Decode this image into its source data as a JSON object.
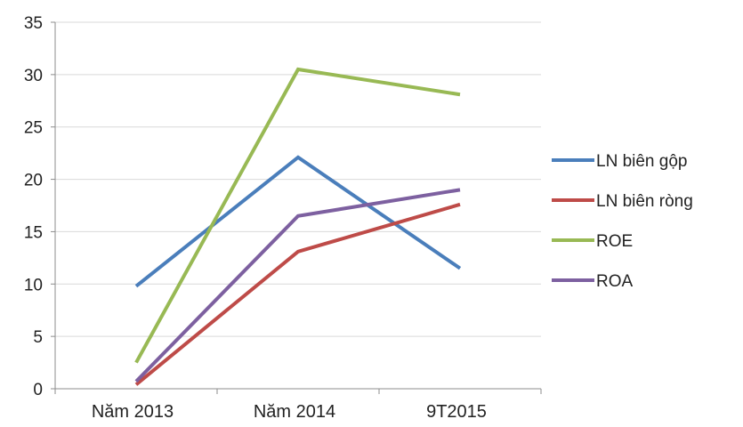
{
  "chart_data": {
    "type": "line",
    "title": "",
    "xlabel": "",
    "ylabel": "",
    "categories": [
      "Năm 2013",
      "Năm 2014",
      "9T2015"
    ],
    "ylim": [
      0,
      35
    ],
    "yticks": [
      0,
      5,
      10,
      15,
      20,
      25,
      30,
      35
    ],
    "grid": true,
    "legend_position": "right",
    "series": [
      {
        "name": "LN biên gộp",
        "color": "#4a7ebb",
        "values": [
          9.8,
          22.1,
          11.5
        ]
      },
      {
        "name": "LN biên ròng",
        "color": "#be4b48",
        "values": [
          0.4,
          13.1,
          17.6
        ]
      },
      {
        "name": "ROE",
        "color": "#98b954",
        "values": [
          2.5,
          30.5,
          28.1
        ]
      },
      {
        "name": "ROA",
        "color": "#7d60a0",
        "values": [
          0.7,
          16.5,
          19.0
        ]
      }
    ]
  }
}
